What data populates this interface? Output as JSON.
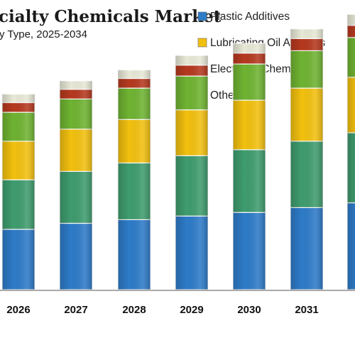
{
  "colors": {
    "plastic_additives": "#2e7bc8",
    "green_segment": "#3f9c6e",
    "lubricating_oil_additives": "#f2c00f",
    "bright_green_segment": "#6fb332",
    "electronic_chemicals": "#b5391f",
    "others": "#e8e8d6"
  },
  "chart_data": {
    "type": "bar",
    "stacked": true,
    "title": "cialty Chemicals Market",
    "subtitle": "y Type, 2025-2034",
    "categories": [
      "2026",
      "2027",
      "2028",
      "2029",
      "2030",
      "2031",
      "2"
    ],
    "series": [
      {
        "name": "Plastic Additives",
        "color_key": "plastic_additives",
        "values": [
          50,
          55,
          58,
          61,
          64,
          68,
          72
        ]
      },
      {
        "name": "",
        "color_key": "green_segment",
        "values": [
          41,
          43,
          47,
          50,
          52,
          55,
          58
        ]
      },
      {
        "name": "Lubricating Oil Additves",
        "color_key": "lubricating_oil_additives",
        "values": [
          32,
          35,
          36,
          38,
          41,
          44,
          46
        ]
      },
      {
        "name": "",
        "color_key": "bright_green_segment",
        "values": [
          24,
          25,
          26,
          28,
          30,
          31,
          33
        ]
      },
      {
        "name": "Electronic Chemicals",
        "color_key": "electronic_chemicals",
        "values": [
          8,
          8,
          8,
          9,
          9,
          10,
          10
        ]
      },
      {
        "name": "Others",
        "color_key": "others",
        "values": [
          7,
          7,
          7,
          8,
          8,
          8,
          9
        ]
      }
    ],
    "legend": [
      "Plastic Additives",
      "Lubricating Oil Additves",
      "Electronic Chemicals",
      "Others"
    ],
    "legend_position": "top-right",
    "ylim": [
      0,
      240
    ],
    "grid": false
  }
}
